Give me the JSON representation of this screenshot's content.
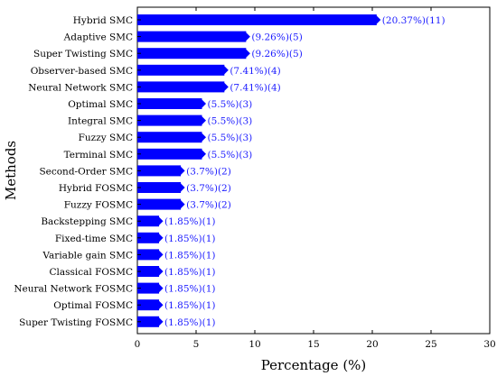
{
  "chart_data": {
    "type": "bar",
    "orientation": "horizontal",
    "xlabel": "Percentage (%)",
    "ylabel": "Methods",
    "xlim": [
      0,
      30
    ],
    "xticks": [
      0,
      5,
      10,
      15,
      20,
      25,
      30
    ],
    "bar_color": "#0000ff",
    "label_color": "#1a1aff",
    "grid": false,
    "categories": [
      "Hybrid SMC",
      "Adaptive SMC",
      "Super Twisting SMC",
      "Observer-based SMC",
      "Neural Network SMC",
      "Optimal SMC",
      "Integral SMC",
      "Fuzzy SMC",
      "Terminal SMC",
      "Second-Order SMC",
      "Hybrid FOSMC",
      "Fuzzy FOSMC",
      "Backstepping SMC",
      "Fixed-time SMC",
      "Variable gain SMC",
      "Classical FOSMC",
      "Neural Network FOSMC",
      "Optimal FOSMC",
      "Super Twisting FOSMC"
    ],
    "values": [
      20.37,
      9.26,
      9.26,
      7.41,
      7.41,
      5.5,
      5.5,
      5.5,
      5.5,
      3.7,
      3.7,
      3.7,
      1.85,
      1.85,
      1.85,
      1.85,
      1.85,
      1.85,
      1.85
    ],
    "data_labels": [
      "(20.37%)(11)",
      "(9.26%)(5)",
      "(9.26%)(5)",
      "(7.41%)(4)",
      "(7.41%)(4)",
      "(5.5%)(3)",
      "(5.5%)(3)",
      "(5.5%)(3)",
      "(5.5%)(3)",
      "(3.7%)(2)",
      "(3.7%)(2)",
      "(3.7%)(2)",
      "(1.85%)(1)",
      "(1.85%)(1)",
      "(1.85%)(1)",
      "(1.85%)(1)",
      "(1.85%)(1)",
      "(1.85%)(1)",
      "(1.85%)(1)"
    ]
  }
}
